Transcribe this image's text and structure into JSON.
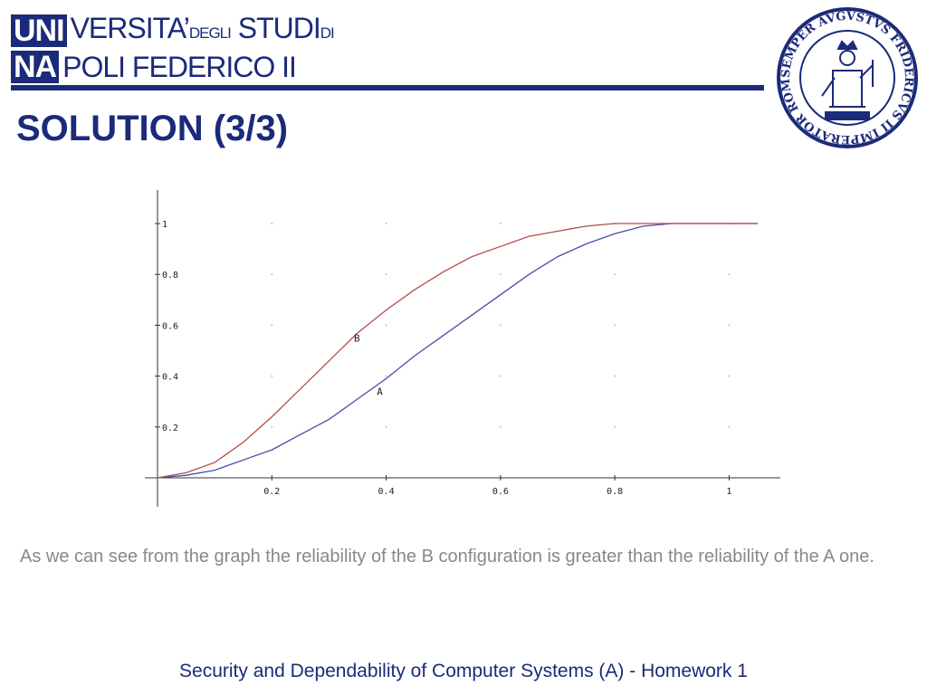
{
  "header": {
    "logo": {
      "row1_box": "UNI",
      "row1_text": "VERSITA’",
      "row1_small": "DEGLI",
      "row1_text2": "STUDI",
      "row1_small2": "DI",
      "row2_box": "NA",
      "row2_text": "POLI FEDERICO II"
    },
    "seal_lettering": "SEMPER AVGVSTVS FRIDERICVS II IMPERATOR ROMANORVM",
    "accent_color": "#1b2a7a"
  },
  "slide": {
    "title": "SOLUTION (3/3)",
    "caption": "As we can see from the graph the reliability of the B configuration is greater than the reliability of the A one.",
    "footer": "Security and Dependability of Computer Systems (A) - Homework 1"
  },
  "chart_data": {
    "type": "line",
    "xlim": [
      0,
      1.05
    ],
    "ylim": [
      0,
      1.05
    ],
    "xticks": [
      0.2,
      0.4,
      0.6,
      0.8,
      1
    ],
    "xtick_labels": [
      "0.2",
      "0.4",
      "0.6",
      "0.8",
      "1"
    ],
    "yticks": [
      0.2,
      0.4,
      0.6,
      0.8,
      1
    ],
    "ytick_labels": [
      "0.2",
      "0.4",
      "0.6",
      "0.8",
      "1"
    ],
    "grid": "dotted points",
    "series": [
      {
        "name": "A",
        "color": "#4b4ba8",
        "x": [
          0,
          0.05,
          0.1,
          0.15,
          0.2,
          0.25,
          0.3,
          0.35,
          0.4,
          0.45,
          0.5,
          0.55,
          0.6,
          0.65,
          0.7,
          0.75,
          0.8,
          0.85,
          0.9,
          0.95,
          1,
          1.05
        ],
        "y": [
          0,
          0.01,
          0.03,
          0.07,
          0.11,
          0.17,
          0.23,
          0.31,
          0.39,
          0.48,
          0.56,
          0.64,
          0.72,
          0.8,
          0.87,
          0.92,
          0.96,
          0.99,
          1,
          1,
          1,
          1
        ],
        "label_at": [
          0.39,
          0.34
        ]
      },
      {
        "name": "B",
        "color": "#b84a4a",
        "x": [
          0,
          0.05,
          0.1,
          0.15,
          0.2,
          0.25,
          0.3,
          0.35,
          0.4,
          0.45,
          0.5,
          0.55,
          0.6,
          0.65,
          0.7,
          0.75,
          0.8,
          0.85,
          0.9,
          0.95,
          1,
          1.05
        ],
        "y": [
          0,
          0.02,
          0.06,
          0.14,
          0.24,
          0.35,
          0.46,
          0.57,
          0.66,
          0.74,
          0.81,
          0.87,
          0.91,
          0.95,
          0.97,
          0.99,
          1,
          1,
          1,
          1,
          1,
          1
        ],
        "label_at": [
          0.35,
          0.55
        ]
      }
    ]
  }
}
